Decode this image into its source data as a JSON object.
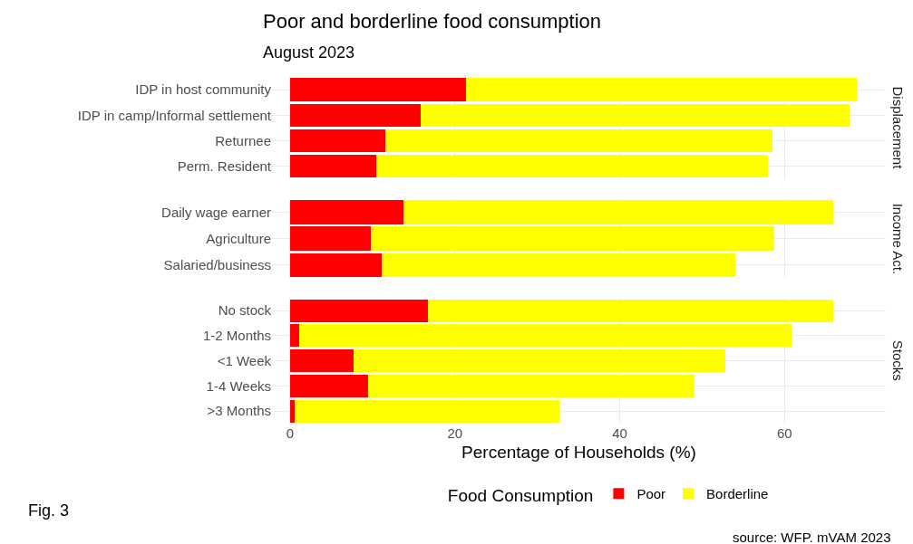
{
  "chart_data": [
    {
      "type": "bar",
      "orientation": "horizontal",
      "stacked": true,
      "title": "Poor and borderline food consumption",
      "subtitle": "August 2023",
      "y2label": "Displacement",
      "categories": [
        "IDP in host community",
        "IDP in camp/Informal settlement",
        "Returnee",
        "Perm. Resident"
      ],
      "series": [
        {
          "color": "#ff0000",
          "values": [
            21.3,
            15.9,
            11.6,
            10.4
          ]
        },
        {
          "color": "#ffff00",
          "values": [
            47.5,
            52.0,
            46.9,
            47.6
          ]
        }
      ],
      "xlim": [
        -2.2,
        72.3
      ],
      "xticks": [
        0,
        20,
        40,
        60
      ],
      "grid": true,
      "tick_labels": "y"
    },
    {
      "type": "bar",
      "orientation": "horizontal",
      "stacked": true,
      "y2label": "Income Act.",
      "categories": [
        "Daily wage earner",
        "Agriculture",
        "Salaried/business"
      ],
      "series": [
        {
          "color": "#ff0000",
          "values": [
            13.8,
            9.8,
            11.1
          ]
        },
        {
          "color": "#ffff00",
          "values": [
            52.1,
            49.0,
            42.9
          ]
        }
      ],
      "xlim": [
        -2.2,
        72.3
      ],
      "xticks": [
        0,
        20,
        40,
        60
      ],
      "grid": true,
      "tick_labels": "y"
    },
    {
      "type": "bar",
      "orientation": "horizontal",
      "stacked": true,
      "y2label": "Stocks",
      "xlabel": "Percentage of Households (%)",
      "legend_title": "Food Consumption",
      "legend": "bottom",
      "categories": [
        "No stock",
        "1-2 Months",
        "<1 Week",
        "1-4 Weeks",
        ">3 Months"
      ],
      "series": [
        {
          "name": "Poor",
          "color": "#ff0000",
          "values": [
            16.7,
            1.1,
            7.7,
            9.5,
            0.5
          ]
        },
        {
          "name": "Borderline",
          "color": "#ffff00",
          "values": [
            49.2,
            59.7,
            45.1,
            39.6,
            32.2
          ]
        }
      ],
      "xlim": [
        -2.2,
        72.3
      ],
      "xticks": [
        0,
        20,
        40,
        60
      ],
      "grid": true,
      "annotations": [
        "Fig. 3",
        "source: WFP. mVAM 2023"
      ]
    }
  ]
}
